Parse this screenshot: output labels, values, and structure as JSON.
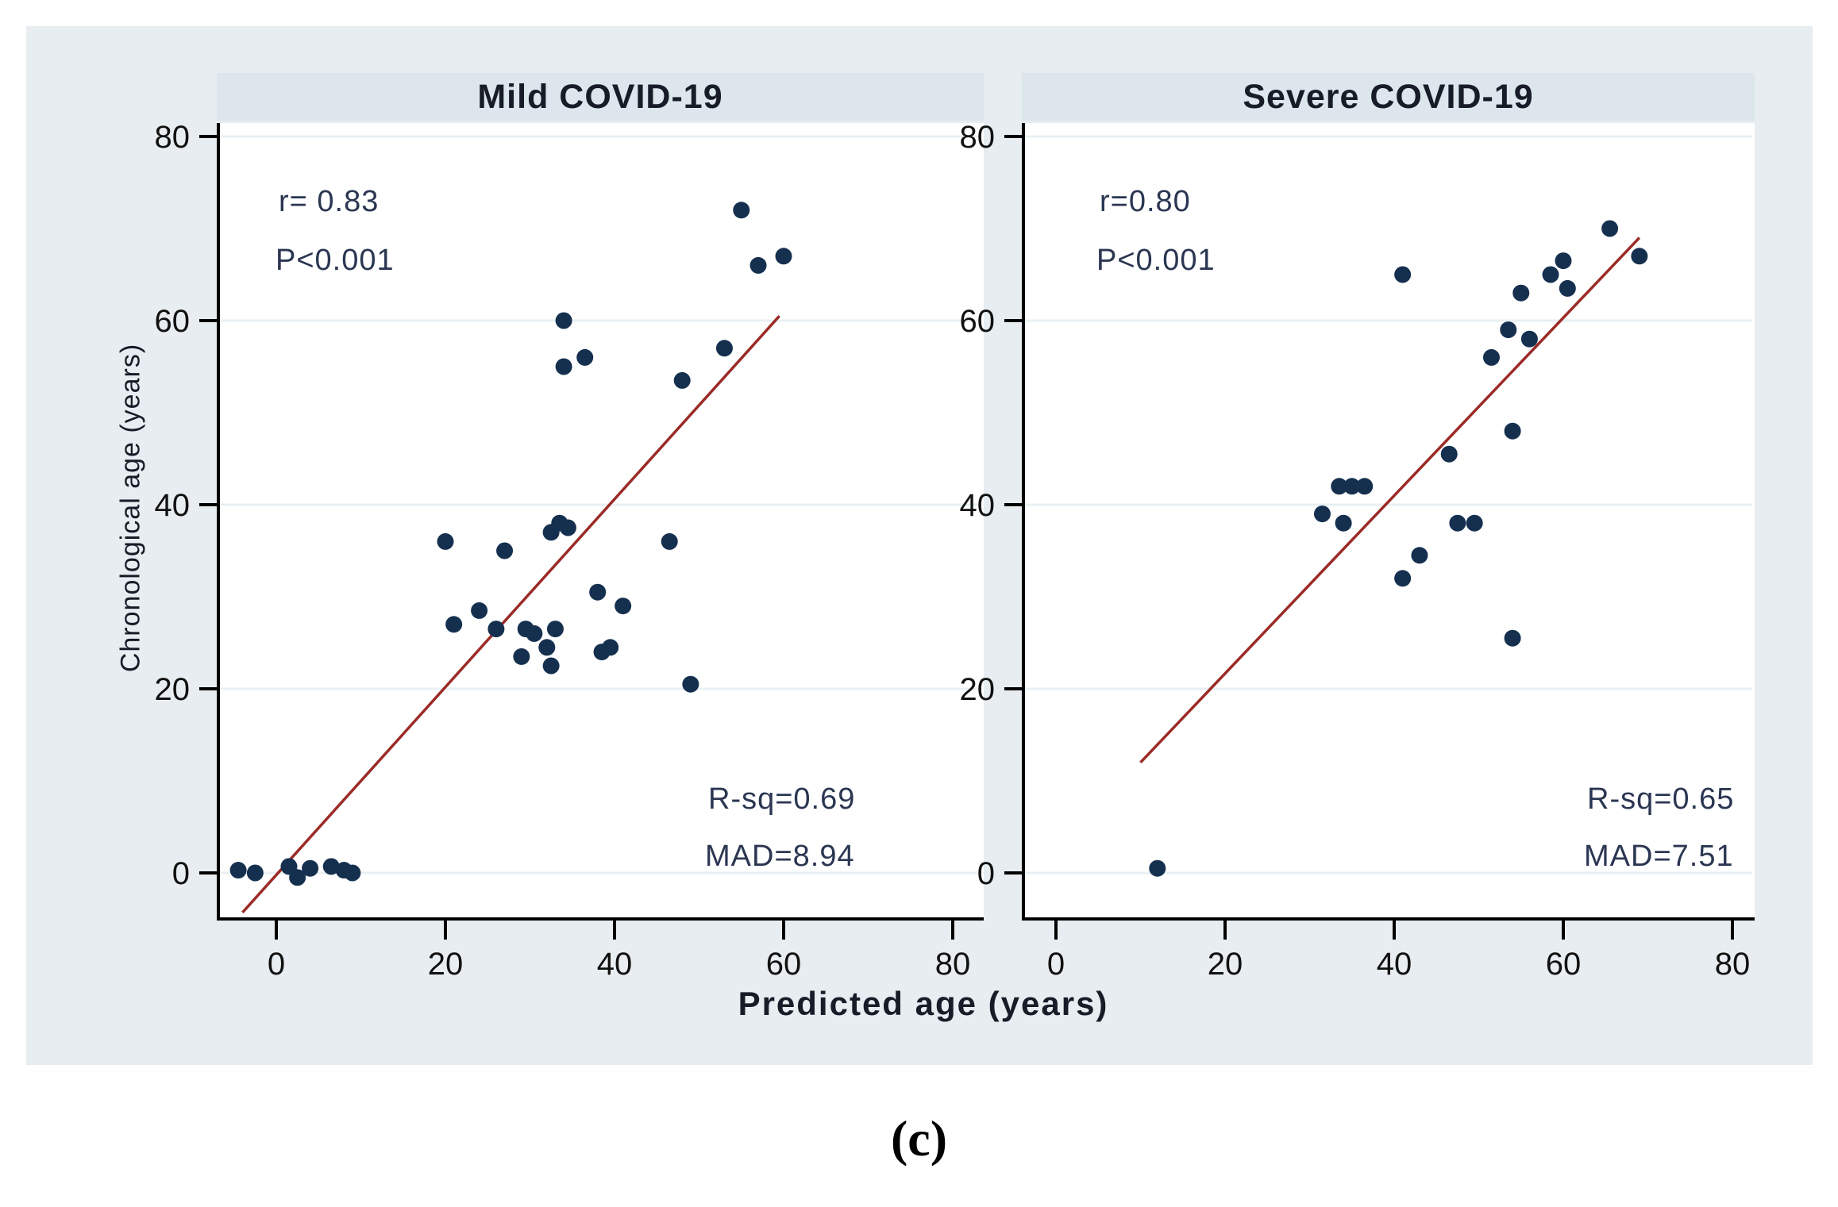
{
  "figure": {
    "caption": "(c)",
    "x_axis_label": "Predicted age (years)",
    "y_axis_label": "Chronological age (years)",
    "x_ticks": [
      0,
      20,
      40,
      60,
      80
    ],
    "y_ticks": [
      0,
      20,
      40,
      60,
      80
    ],
    "colors": {
      "background": "#e7edf0",
      "title_band": "#dce6ec",
      "plot_background": "#ffffff",
      "gridline": "#e8f0f3",
      "axis": "#000000",
      "marker": "#15304f",
      "fit_line": "#9b2b28",
      "title_text": "#171c28",
      "stats_text": "#2b3652",
      "tick_text": "#111111"
    }
  },
  "chart_data": [
    {
      "type": "scatter",
      "title": "Mild COVID-19",
      "xlabel": "Predicted age (years)",
      "ylabel": "Chronological age (years)",
      "xlim": [
        -7,
        84
      ],
      "ylim": [
        -6,
        81.5
      ],
      "grid": "horizontal",
      "annotations": {
        "r": "r= 0.83",
        "p": "P<0.001",
        "rsq": "R-sq=0.69",
        "mad": "MAD=8.94"
      },
      "fit_line": {
        "x1": -4,
        "y1": -4.3,
        "x2": 59.5,
        "y2": 60.5
      },
      "points": [
        [
          -4.5,
          0.3
        ],
        [
          -2.5,
          0
        ],
        [
          1.5,
          0.7
        ],
        [
          2.5,
          -0.5
        ],
        [
          4,
          0.5
        ],
        [
          6.5,
          0.7
        ],
        [
          8,
          0.3
        ],
        [
          9,
          0
        ],
        [
          20,
          36
        ],
        [
          27,
          35
        ],
        [
          32.5,
          37
        ],
        [
          33.5,
          38
        ],
        [
          34.5,
          37.5
        ],
        [
          46.5,
          36
        ],
        [
          21,
          27
        ],
        [
          24,
          28.5
        ],
        [
          26,
          26.5
        ],
        [
          29.5,
          26.5
        ],
        [
          30.5,
          26
        ],
        [
          33,
          26.5
        ],
        [
          32,
          24.5
        ],
        [
          29,
          23.5
        ],
        [
          32.5,
          22.5
        ],
        [
          38.5,
          24
        ],
        [
          39.5,
          24.5
        ],
        [
          49,
          20.5
        ],
        [
          38,
          30.5
        ],
        [
          41,
          29
        ],
        [
          34,
          60
        ],
        [
          34,
          55
        ],
        [
          36.5,
          56
        ],
        [
          48,
          53.5
        ],
        [
          53,
          57
        ],
        [
          55,
          72
        ],
        [
          57,
          66
        ],
        [
          60,
          67
        ]
      ]
    },
    {
      "type": "scatter",
      "title": "Severe COVID-19",
      "xlabel": "Predicted age (years)",
      "ylabel": "Chronological age (years)",
      "xlim": [
        -4,
        82.5
      ],
      "ylim": [
        -6,
        81.5
      ],
      "grid": "horizontal",
      "annotations": {
        "r": "r=0.80",
        "p": "P<0.001",
        "rsq": "R-sq=0.65",
        "mad": "MAD=7.51"
      },
      "fit_line": {
        "x1": 10,
        "y1": 12,
        "x2": 69,
        "y2": 69
      },
      "points": [
        [
          12,
          0.5
        ],
        [
          31.5,
          39
        ],
        [
          34,
          38
        ],
        [
          33.5,
          42
        ],
        [
          35,
          42
        ],
        [
          36.5,
          42
        ],
        [
          41,
          32
        ],
        [
          43,
          34.5
        ],
        [
          47.5,
          38
        ],
        [
          49.5,
          38
        ],
        [
          54,
          25.5
        ],
        [
          41,
          65
        ],
        [
          46.5,
          45.5
        ],
        [
          54,
          48
        ],
        [
          51.5,
          56
        ],
        [
          53.5,
          59
        ],
        [
          56,
          58
        ],
        [
          55,
          63
        ],
        [
          58.5,
          65
        ],
        [
          60.5,
          63.5
        ],
        [
          60,
          66.5
        ],
        [
          65.5,
          70
        ],
        [
          69,
          67
        ]
      ]
    }
  ]
}
